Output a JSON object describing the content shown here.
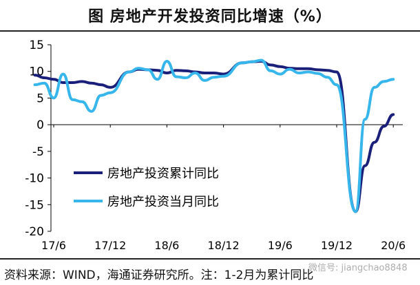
{
  "title": "图    房地产开发投资同比增速（%）",
  "footer": "资料来源：WIND，海通证券研究所。注：1-2月为累计同比",
  "watermark": "微信号: jiangchao8848",
  "chart_data": {
    "type": "line",
    "ylim": [
      -20,
      15
    ],
    "yticks": [
      15,
      10,
      5,
      0,
      -5,
      -10,
      -15,
      -20
    ],
    "xticks": [
      "17/6",
      "17/12",
      "18/6",
      "18/12",
      "19/6",
      "19/12",
      "20/6"
    ],
    "legend_placement": "lower-left",
    "colors": {
      "cumulative": "#1a1f7a",
      "monthly": "#37b6ec"
    },
    "series": [
      {
        "name": "房地产投资累计同比",
        "key": "cumulative",
        "color": "#1a1f7a",
        "x": [
          "17/4",
          "17/5",
          "17/6",
          "17/7",
          "17/8",
          "17/9",
          "17/10",
          "17/11",
          "17/12",
          "18/2",
          "18/3",
          "18/4",
          "18/5",
          "18/6",
          "18/7",
          "18/8",
          "18/9",
          "18/10",
          "18/11",
          "18/12",
          "19/2",
          "19/3",
          "19/4",
          "19/5",
          "19/6",
          "19/7",
          "19/8",
          "19/9",
          "19/10",
          "19/11",
          "19/12",
          "20/2",
          "20/3",
          "20/4",
          "20/5",
          "20/6"
        ],
        "values": [
          9.3,
          8.8,
          8.5,
          7.9,
          7.9,
          8.1,
          7.8,
          7.5,
          7.0,
          9.9,
          10.4,
          10.3,
          10.2,
          9.7,
          10.2,
          10.1,
          9.9,
          9.7,
          9.7,
          9.5,
          11.6,
          11.8,
          11.9,
          11.2,
          10.9,
          10.6,
          10.5,
          10.5,
          10.3,
          10.2,
          9.9,
          -16.3,
          -7.7,
          -3.3,
          -0.3,
          1.9
        ]
      },
      {
        "name": "房地产投资当月同比",
        "key": "monthly",
        "color": "#37b6ec",
        "x": [
          "17/4",
          "17/5",
          "17/6",
          "17/7",
          "17/8",
          "17/9",
          "17/10",
          "17/11",
          "17/12",
          "18/2",
          "18/3",
          "18/4",
          "18/5",
          "18/6",
          "18/7",
          "18/8",
          "18/9",
          "18/10",
          "18/11",
          "18/12",
          "19/2",
          "19/3",
          "19/4",
          "19/5",
          "19/6",
          "19/7",
          "19/8",
          "19/9",
          "19/10",
          "19/11",
          "19/12",
          "20/2",
          "20/3",
          "20/4",
          "20/5",
          "20/6"
        ],
        "values": [
          7.5,
          7.8,
          5.0,
          9.5,
          4.7,
          4.3,
          2.5,
          5.5,
          6.0,
          9.9,
          10.6,
          10.3,
          8.5,
          11.9,
          9.0,
          8.8,
          9.7,
          8.3,
          8.9,
          9.1,
          11.6,
          11.8,
          12.1,
          10.1,
          9.5,
          10.4,
          9.7,
          9.9,
          9.6,
          8.9,
          7.5,
          -16.3,
          1.0,
          7.0,
          8.1,
          8.5
        ]
      }
    ]
  }
}
